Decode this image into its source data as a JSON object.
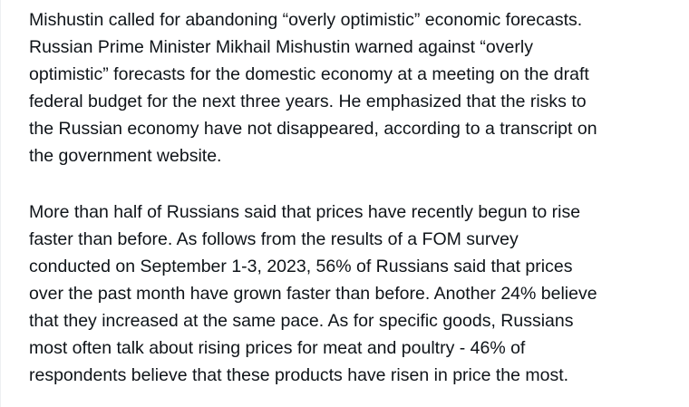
{
  "paragraphs": [
    {
      "lines": [
        "Mishustin called for abandoning “overly optimistic” economic forecasts.",
        "Russian Prime Minister Mikhail Mishustin warned against “overly",
        "optimistic” forecasts for the domestic economy at a meeting on the draft",
        "federal budget for the next three years. He emphasized that the risks to",
        "the Russian economy have not disappeared, according to a transcript on",
        "the government website."
      ]
    },
    {
      "lines": [
        "More than half of Russians said that prices have recently begun to rise",
        "faster than before. As follows from the results of a FOM survey",
        "conducted on September 1-3, 2023, 56% of Russians said that prices",
        "over the past month have grown faster than before. Another 24% believe",
        "that they increased at the same pace. As for specific goods, Russians",
        "most often talk about rising prices for meat and poultry - 46% of",
        "respondents believe that these products have risen in price the most."
      ]
    }
  ]
}
